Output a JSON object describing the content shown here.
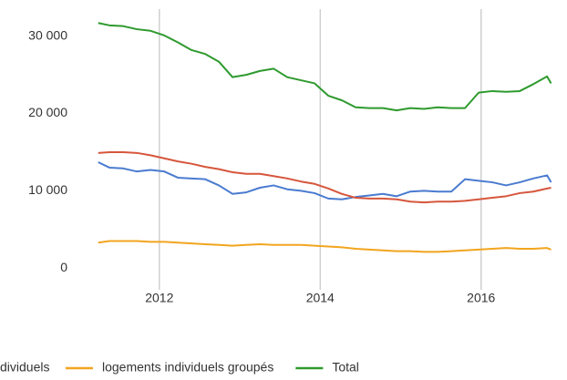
{
  "chart_data": {
    "type": "line",
    "x": [
      2011.24,
      2011.38,
      2011.55,
      2011.72,
      2011.89,
      2012.06,
      2012.23,
      2012.4,
      2012.57,
      2012.74,
      2012.91,
      2013.08,
      2013.25,
      2013.42,
      2013.59,
      2013.76,
      2013.93,
      2014.1,
      2014.27,
      2014.44,
      2014.61,
      2014.78,
      2014.95,
      2015.12,
      2015.29,
      2015.46,
      2015.63,
      2015.8,
      2015.97,
      2016.14,
      2016.31,
      2016.48,
      2016.65,
      2016.82,
      2016.87
    ],
    "series": [
      {
        "color": "#4a7bd0",
        "values": [
          13700,
          13000,
          12900,
          12500,
          12700,
          12500,
          11700,
          11600,
          11500,
          10700,
          9600,
          9800,
          10400,
          10700,
          10200,
          10000,
          9700,
          9000,
          8900,
          9200,
          9400,
          9600,
          9300,
          9900,
          10000,
          9900,
          9900,
          11500,
          11300,
          11100,
          10700,
          11100,
          11600,
          12000,
          11100
        ]
      },
      {
        "color": "#d6563c",
        "values": [
          14900,
          15000,
          15000,
          14900,
          14600,
          14200,
          13800,
          13500,
          13100,
          12800,
          12400,
          12200,
          12200,
          11900,
          11600,
          11200,
          10900,
          10300,
          9600,
          9100,
          9000,
          9000,
          8900,
          8600,
          8500,
          8600,
          8600,
          8700,
          8900,
          9100,
          9300,
          9700,
          9900,
          10300,
          10400
        ]
      },
      {
        "name": "logements individuels groupés",
        "color": "#f2a51f",
        "values": [
          3300,
          3500,
          3500,
          3500,
          3400,
          3400,
          3300,
          3200,
          3100,
          3000,
          2900,
          3000,
          3100,
          3000,
          3000,
          3000,
          2900,
          2800,
          2700,
          2500,
          2400,
          2300,
          2200,
          2200,
          2100,
          2100,
          2200,
          2300,
          2400,
          2500,
          2600,
          2500,
          2500,
          2600,
          2400
        ]
      },
      {
        "name": "Total",
        "color": "#2e9a2e",
        "values": [
          31700,
          31400,
          31300,
          30900,
          30700,
          30100,
          29200,
          28200,
          27700,
          26700,
          24700,
          25000,
          25500,
          25800,
          24700,
          24300,
          23900,
          22300,
          21700,
          20800,
          20700,
          20700,
          20400,
          20700,
          20600,
          20800,
          20700,
          20700,
          22700,
          22900,
          22800,
          22900,
          23800,
          24800,
          23900
        ]
      }
    ],
    "legend_fragment": "dividuels",
    "xlim": [
      2011.05,
      2017.0
    ],
    "ylim": [
      -2800,
      33500
    ],
    "xticks": [
      2012,
      2014,
      2016
    ],
    "yticks": [
      0,
      {
        "value": 10000,
        "label": "10 000"
      },
      {
        "value": 20000,
        "label": "20 000"
      },
      {
        "value": 30000,
        "label": "30 000"
      }
    ],
    "grid": "x",
    "legend": "bottom"
  }
}
